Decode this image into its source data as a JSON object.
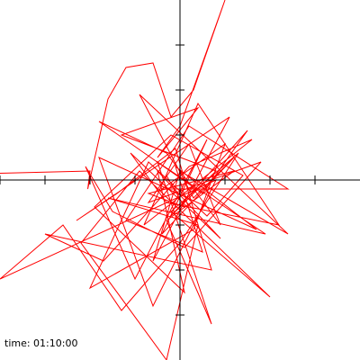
{
  "chart_data": {
    "type": "line",
    "annotation": "time: 01:10:00",
    "xlim": [
      -4,
      4
    ],
    "ylim": [
      -4,
      4
    ],
    "xticks": [
      -4,
      -3,
      -2,
      -1,
      1,
      2,
      3
    ],
    "yticks": [
      -3,
      -2,
      -1,
      1,
      2,
      3
    ],
    "series": [
      {
        "color": "#ff0000",
        "x": [
          -4,
          -2,
          -2.05,
          -1.6,
          -1.2,
          -0.6,
          -0.2,
          0.3,
          1,
          0,
          -0.5,
          0.4,
          -1.3,
          0.8,
          -0.2,
          1.5,
          0.5,
          -1.8,
          -0.3,
          0.9,
          0.2,
          -0.7,
          1.8,
          0.1,
          -1.5,
          -2.1,
          -1.0,
          0.6,
          -0.4,
          1.2,
          0.3,
          -0.9,
          2.4,
          0.0,
          -0.6,
          1.1,
          -2.3,
          -1.4,
          -0.1,
          0.7,
          -3.0,
          -1.7,
          0.2,
          1.6,
          -0.8,
          0.4,
          2.2,
          -0.3,
          -1.1,
          0.9,
          -0.5,
          0.1,
          -1.9,
          -0.2,
          1.4,
          0.6,
          -0.7,
          -2.0,
          0.3,
          1.0,
          -0.4,
          2.4,
          0.2,
          -1.2,
          0.5,
          -0.1,
          1.7,
          -1.8,
          -0.6,
          0.8,
          -4,
          -2.6,
          -1.3,
          0.0,
          1.3,
          -0.2,
          2.0,
          -0.9,
          -2.2,
          -0.3,
          0.4,
          -1.6,
          1.9,
          -0.5,
          0.7,
          -0.3,
          1.2,
          -0.7,
          0.1,
          -0.3
        ],
        "values": [
          0.15,
          0.2,
          -0.2,
          1.8,
          2.5,
          2.6,
          1.4,
          2.0,
          4,
          1.2,
          0.5,
          1.6,
          1.0,
          0.2,
          -0.8,
          1.1,
          -0.3,
          1.3,
          0.6,
          -1.0,
          0.8,
          -0.5,
          0.4,
          -1.5,
          -0.7,
          0.3,
          -2.2,
          0.9,
          -1.2,
          0.5,
          -0.4,
          1.9,
          -1.2,
          0.2,
          -1.8,
          1.4,
          -0.9,
          -0.3,
          0.7,
          -2.0,
          -1.2,
          -1.8,
          0.3,
          0.9,
          -1.0,
          1.7,
          -1.0,
          -0.5,
          0.6,
          -1.3,
          0.2,
          -2.5,
          -0.6,
          1.0,
          0.1,
          -0.8,
          0.4,
          -2.4,
          -1.1,
          0.8,
          -0.2,
          -0.2,
          1.2,
          -0.9,
          -1.6,
          0.3,
          -1.1,
          0.5,
          -2.8,
          0.0,
          -2.2,
          -1.0,
          -2.9,
          -1.4,
          0.6,
          -0.7,
          -2.6,
          0.2,
          -1.4,
          -4,
          -1.0,
          -0.4,
          -1.2,
          0.4,
          -3.2,
          -0.9,
          0.2,
          -0.3,
          -0.6,
          0.1
        ]
      }
    ]
  }
}
